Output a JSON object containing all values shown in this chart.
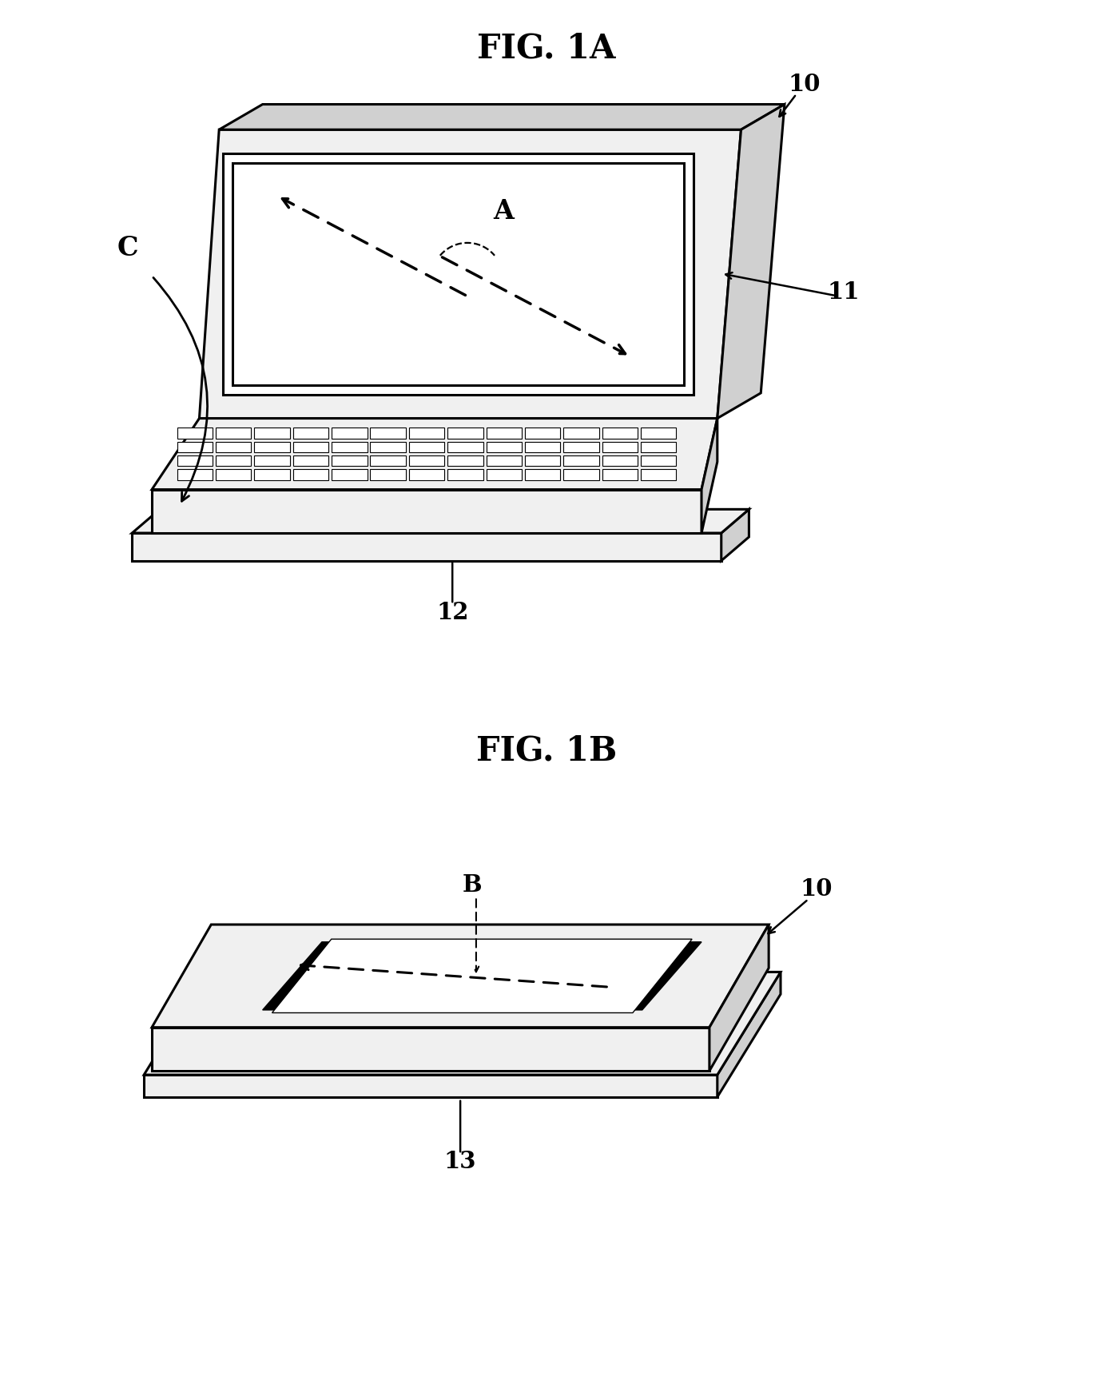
{
  "background_color": "#ffffff",
  "fig_width": 13.68,
  "fig_height": 17.32,
  "title_1A": "FIG. 1A",
  "title_1B": "FIG. 1B",
  "label_10_1A": "10",
  "label_11": "11",
  "label_12": "12",
  "label_C": "C",
  "label_A": "A",
  "label_10_1B": "10",
  "label_B": "B",
  "label_13": "13",
  "line_color": "#000000",
  "fill_light": "#f0f0f0",
  "fill_white": "#ffffff",
  "fill_gray": "#d0d0d0",
  "fill_dark": "#a0a0a0",
  "fill_keyboard": "#e8e8e8"
}
